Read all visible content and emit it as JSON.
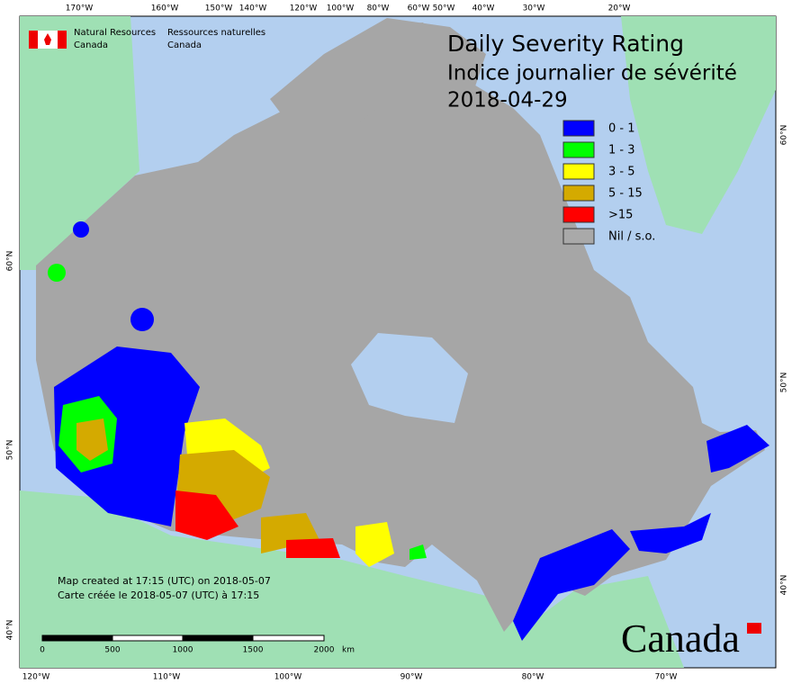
{
  "header": {
    "title": "Daily Severity Rating",
    "subtitle": "Indice journalier de sévérité",
    "date": "2018-04-29"
  },
  "agency": {
    "english": [
      "Natural Resources",
      "Canada"
    ],
    "french": [
      "Ressources naturelles",
      "Canada"
    ],
    "wordmark": "Canada"
  },
  "legend": [
    {
      "label": "0 - 1",
      "color": "#0000ff"
    },
    {
      "label": "1 - 3",
      "color": "#00ff00"
    },
    {
      "label": "3 - 5",
      "color": "#ffff00"
    },
    {
      "label": "5 - 15",
      "color": "#d4aa00"
    },
    {
      "label": ">15",
      "color": "#ff0000"
    },
    {
      "label": "Nil / s.o.",
      "color": "#a9a9a9"
    }
  ],
  "notes": [
    "Map created at 17:15 (UTC) on 2018-05-07",
    "Carte créée le 2018-05-07 (UTC) à 17:15"
  ],
  "scale_bar": {
    "labels": [
      "0",
      "500",
      "1000",
      "1500",
      "2000"
    ],
    "unit": "km"
  },
  "graticule": {
    "top": [
      "170°W",
      "160°W",
      "150°W",
      "140°W",
      "120°W",
      "100°W",
      "80°W",
      "60°W",
      "50°W",
      "40°W",
      "30°W",
      "20°W"
    ],
    "bottom": [
      "120°W",
      "110°W",
      "100°W",
      "90°W",
      "80°W",
      "70°W"
    ],
    "left": [
      "60°N",
      "50°N",
      "40°N"
    ],
    "right": [
      "60°N",
      "50°N",
      "40°N"
    ]
  }
}
